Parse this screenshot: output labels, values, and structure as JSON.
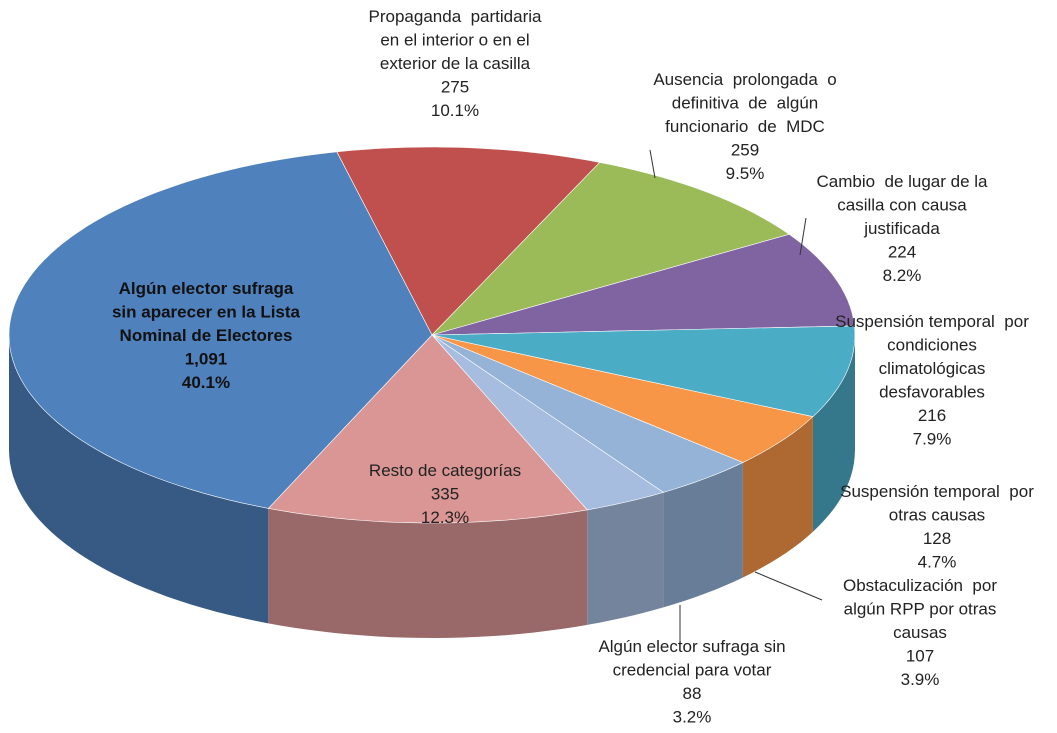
{
  "chart_data": {
    "type": "pie3d",
    "categories": [
      "Propaganda  partidaria\nen el interior o en el\nexterior de la casilla",
      "Ausencia  prolongada  o\ndefinitiva  de  algún\nfuncionario  de  MDC",
      "Cambio  de lugar de la\ncasilla con causa\njustificada",
      "Suspensión temporal  por\ncondiciones\nclimatológicas\ndesfavorables",
      "Suspensión temporal  por\notras causas",
      "Obstaculización  por\nalgún RPP por otras\ncausas",
      "Algún elector sufraga sin\ncredencial para votar",
      "Resto de categorías",
      "Algún elector sufraga\nsin aparecer en la Lista\nNominal de Electores"
    ],
    "values": [
      275,
      259,
      224,
      216,
      128,
      107,
      88,
      335,
      1091
    ],
    "value_labels": [
      "275",
      "259",
      "224",
      "216",
      "128",
      "107",
      "88",
      "335",
      "1,091"
    ],
    "percent_labels": [
      "10.1%",
      "9.5%",
      "8.2%",
      "7.9%",
      "4.7%",
      "3.9%",
      "3.2%",
      "12.3%",
      "40.1%"
    ],
    "colors": [
      "#c0504d",
      "#9bbb59",
      "#8064a2",
      "#4bacc6",
      "#f79646",
      "#95b3d7",
      "#a7bde0",
      "#d99694",
      "#4f81bd"
    ]
  }
}
